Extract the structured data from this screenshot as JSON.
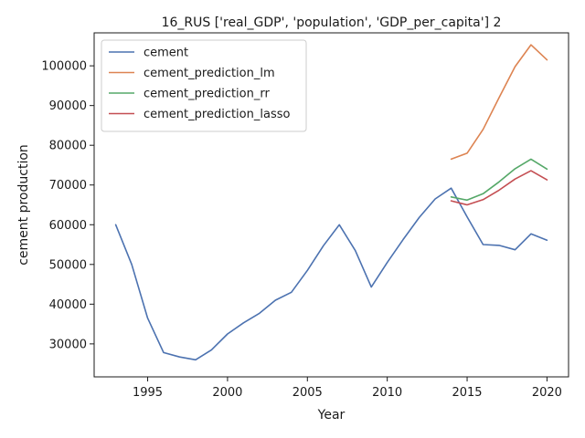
{
  "chart_data": {
    "type": "line",
    "title": "16_RUS ['real_GDP', 'population', 'GDP_per_capita'] 2",
    "xlabel": "Year",
    "ylabel": "cement production",
    "xlim": [
      1991.65,
      2021.35
    ],
    "ylim": [
      21700,
      108300
    ],
    "xticks": [
      1995,
      2000,
      2005,
      2010,
      2015,
      2020
    ],
    "yticks": [
      30000,
      40000,
      50000,
      60000,
      70000,
      80000,
      90000,
      100000
    ],
    "grid": false,
    "legend_position": "upper-left",
    "series": [
      {
        "name": "cement",
        "color": "#4c72b0",
        "x": [
          1993,
          1994,
          1995,
          1996,
          1997,
          1998,
          1999,
          2000,
          2001,
          2002,
          2003,
          2004,
          2005,
          2006,
          2007,
          2008,
          2009,
          2010,
          2011,
          2012,
          2013,
          2014,
          2015,
          2016,
          2017,
          2018,
          2019,
          2020
        ],
        "y": [
          60000,
          50000,
          36500,
          27800,
          26700,
          26000,
          28500,
          32500,
          35300,
          37700,
          41000,
          43000,
          48500,
          54700,
          60000,
          53500,
          44300,
          50500,
          56300,
          61800,
          66500,
          69200,
          62000,
          55000,
          54800,
          53700,
          57700,
          56100
        ]
      },
      {
        "name": "cement_prediction_lm",
        "color": "#dd8452",
        "x": [
          2014,
          2015,
          2016,
          2017,
          2018,
          2019,
          2020
        ],
        "y": [
          76500,
          78000,
          84000,
          92000,
          99800,
          105300,
          101500
        ]
      },
      {
        "name": "cement_prediction_rr",
        "color": "#55a868",
        "x": [
          2014,
          2015,
          2016,
          2017,
          2018,
          2019,
          2020
        ],
        "y": [
          67000,
          66200,
          67800,
          70800,
          74100,
          76500,
          74000
        ]
      },
      {
        "name": "cement_prediction_lasso",
        "color": "#c44e52",
        "x": [
          2014,
          2015,
          2016,
          2017,
          2018,
          2019,
          2020
        ],
        "y": [
          66000,
          65000,
          66300,
          68700,
          71500,
          73600,
          71300
        ]
      }
    ]
  }
}
